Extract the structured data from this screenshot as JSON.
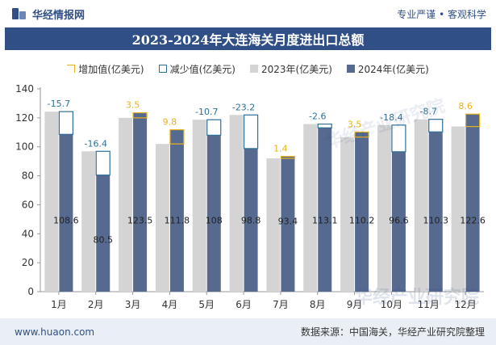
{
  "header": {
    "brand": "华经情报网",
    "tagline": "专业严谨 • 客观科学"
  },
  "watermarks": [
    "华经产业研究院",
    "华经产业研究院"
  ],
  "chart_data": {
    "type": "bar",
    "title": "2023-2024年大连海关月度进出口总额",
    "categories": [
      "1月",
      "2月",
      "3月",
      "4月",
      "5月",
      "6月",
      "7月",
      "8月",
      "9月",
      "10月",
      "11月",
      "12月"
    ],
    "series": [
      {
        "name": "2023年(亿美元)",
        "values": [
          124.3,
          96.9,
          120.0,
          102.0,
          118.7,
          122.0,
          92.0,
          115.7,
          106.7,
          115.0,
          119.0,
          114.0
        ],
        "color": "#d4d4d4"
      },
      {
        "name": "2024年(亿美元)",
        "values": [
          108.6,
          80.5,
          123.5,
          111.8,
          108,
          98.8,
          93.4,
          113.1,
          110.2,
          96.6,
          110.3,
          122.6
        ],
        "color": "#56698f"
      }
    ],
    "change": [
      {
        "label": "-15.7",
        "value": -15.7
      },
      {
        "label": "-16.4",
        "value": -16.4
      },
      {
        "label": "3.5",
        "value": 3.5
      },
      {
        "label": "9.8",
        "value": 9.8
      },
      {
        "label": "-10.7",
        "value": -10.7
      },
      {
        "label": "-23.2",
        "value": -23.2
      },
      {
        "label": "1.4",
        "value": 1.4
      },
      {
        "label": "-2.6",
        "value": -2.6
      },
      {
        "label": "3.5",
        "value": 3.5
      },
      {
        "label": "-18.4",
        "value": -18.4
      },
      {
        "label": "-8.7",
        "value": -8.7
      },
      {
        "label": "8.6",
        "value": 8.6
      }
    ],
    "bar_labels": [
      "108.6",
      "80.5",
      "123.5",
      "111.8",
      "108",
      "98.8",
      "93.4",
      "113.1",
      "110.2",
      "96.6",
      "110.3",
      "122.6"
    ],
    "legend": [
      "增加值(亿美元)",
      "减少值(亿美元)",
      "2023年(亿美元)",
      "2024年(亿美元)"
    ],
    "yticks": [
      "0",
      "20",
      "40",
      "60",
      "80",
      "100",
      "120",
      "140"
    ],
    "ylim": [
      0,
      140
    ],
    "xlabel": "",
    "ylabel": "",
    "colors": {
      "increase": "#e8b21a",
      "decrease": "#2e6f99",
      "axis": "#999999",
      "label": "#333333"
    }
  },
  "footer": {
    "url": "www.huaon.com",
    "source": "数据来源：中国海关，华经产业研究院整理"
  }
}
